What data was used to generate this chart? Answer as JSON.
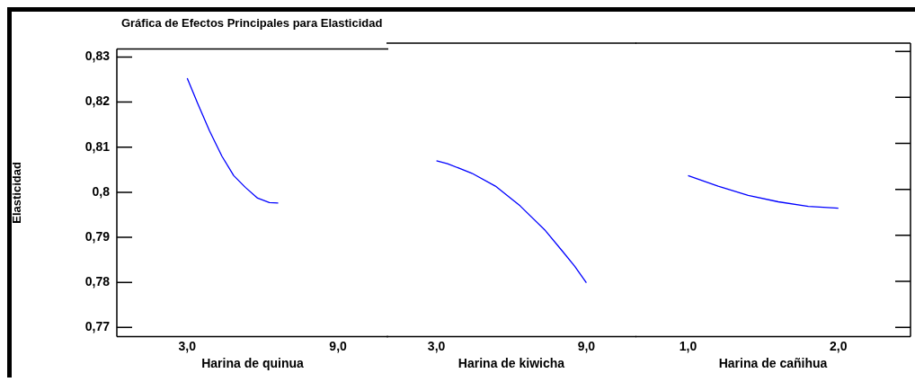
{
  "chart_data": [
    {
      "type": "line",
      "title": "Gráfica de Efectos Principales para Elasticidad",
      "ylabel": "Elasticidad",
      "xlabel": "Harina de quinua",
      "xlim": [
        0.2,
        11
      ],
      "xticks": [
        {
          "value": 3,
          "label": "3,0"
        },
        {
          "value": 9,
          "label": "9,0"
        }
      ],
      "ylim": [
        0.768,
        0.8318
      ],
      "yticks": [
        {
          "value": 0.77,
          "label": "0,77"
        },
        {
          "value": 0.78,
          "label": "0,78"
        },
        {
          "value": 0.79,
          "label": "0,79"
        },
        {
          "value": 0.8,
          "label": "0,8"
        },
        {
          "value": 0.81,
          "label": "0,81"
        },
        {
          "value": 0.82,
          "label": "0,82"
        },
        {
          "value": 0.83,
          "label": "0,83"
        }
      ],
      "grid": false,
      "legend": false,
      "marker": "none",
      "series": [
        {
          "color": "#0000ff",
          "x": [
            3,
            3.43,
            3.89,
            4.38,
            4.85,
            5.31,
            5.8,
            6.27,
            6.62
          ],
          "values": [
            0.8253,
            0.8195,
            0.8136,
            0.808,
            0.8037,
            0.8011,
            0.7987,
            0.7977,
            0.7976
          ]
        }
      ]
    },
    {
      "type": "line",
      "xlabel": "Harina de kiwicha",
      "xlim": [
        1,
        11
      ],
      "xticks": [
        {
          "value": 3,
          "label": "3,0"
        },
        {
          "value": 9,
          "label": "9,0"
        }
      ],
      "ylim": [
        0.768,
        0.8318
      ],
      "tick_labels": "x",
      "grid": false,
      "legend": false,
      "marker": "none",
      "series": [
        {
          "color": "#0000ff",
          "x": [
            3,
            3.44,
            4.42,
            5.36,
            6.35,
            7.33,
            8.05,
            8.53,
            9
          ],
          "values": [
            0.8062,
            0.8056,
            0.8035,
            0.8007,
            0.7964,
            0.7912,
            0.7865,
            0.7833,
            0.7797
          ]
        }
      ]
    },
    {
      "type": "line",
      "xlabel": "Harina de cañihua",
      "xlim": [
        0.65,
        2.48
      ],
      "xticks": [
        {
          "value": 1,
          "label": "1,0"
        },
        {
          "value": 2,
          "label": "2,0"
        }
      ],
      "ylim": [
        0.768,
        0.8318
      ],
      "yticks": [
        {
          "value": 0.77,
          "label": null
        },
        {
          "value": 0.78,
          "label": null
        },
        {
          "value": 0.79,
          "label": null
        },
        {
          "value": 0.8,
          "label": null
        },
        {
          "value": 0.81,
          "label": null
        },
        {
          "value": 0.82,
          "label": null
        },
        {
          "value": 0.83,
          "label": null
        }
      ],
      "tick_labels": "x",
      "grid": false,
      "legend": false,
      "marker": "none",
      "series": [
        {
          "color": "#0000ff",
          "x": [
            1,
            1.2,
            1.4,
            1.6,
            1.8,
            2
          ],
          "values": [
            0.803,
            0.8007,
            0.7987,
            0.7973,
            0.7963,
            0.7959
          ]
        }
      ]
    }
  ]
}
